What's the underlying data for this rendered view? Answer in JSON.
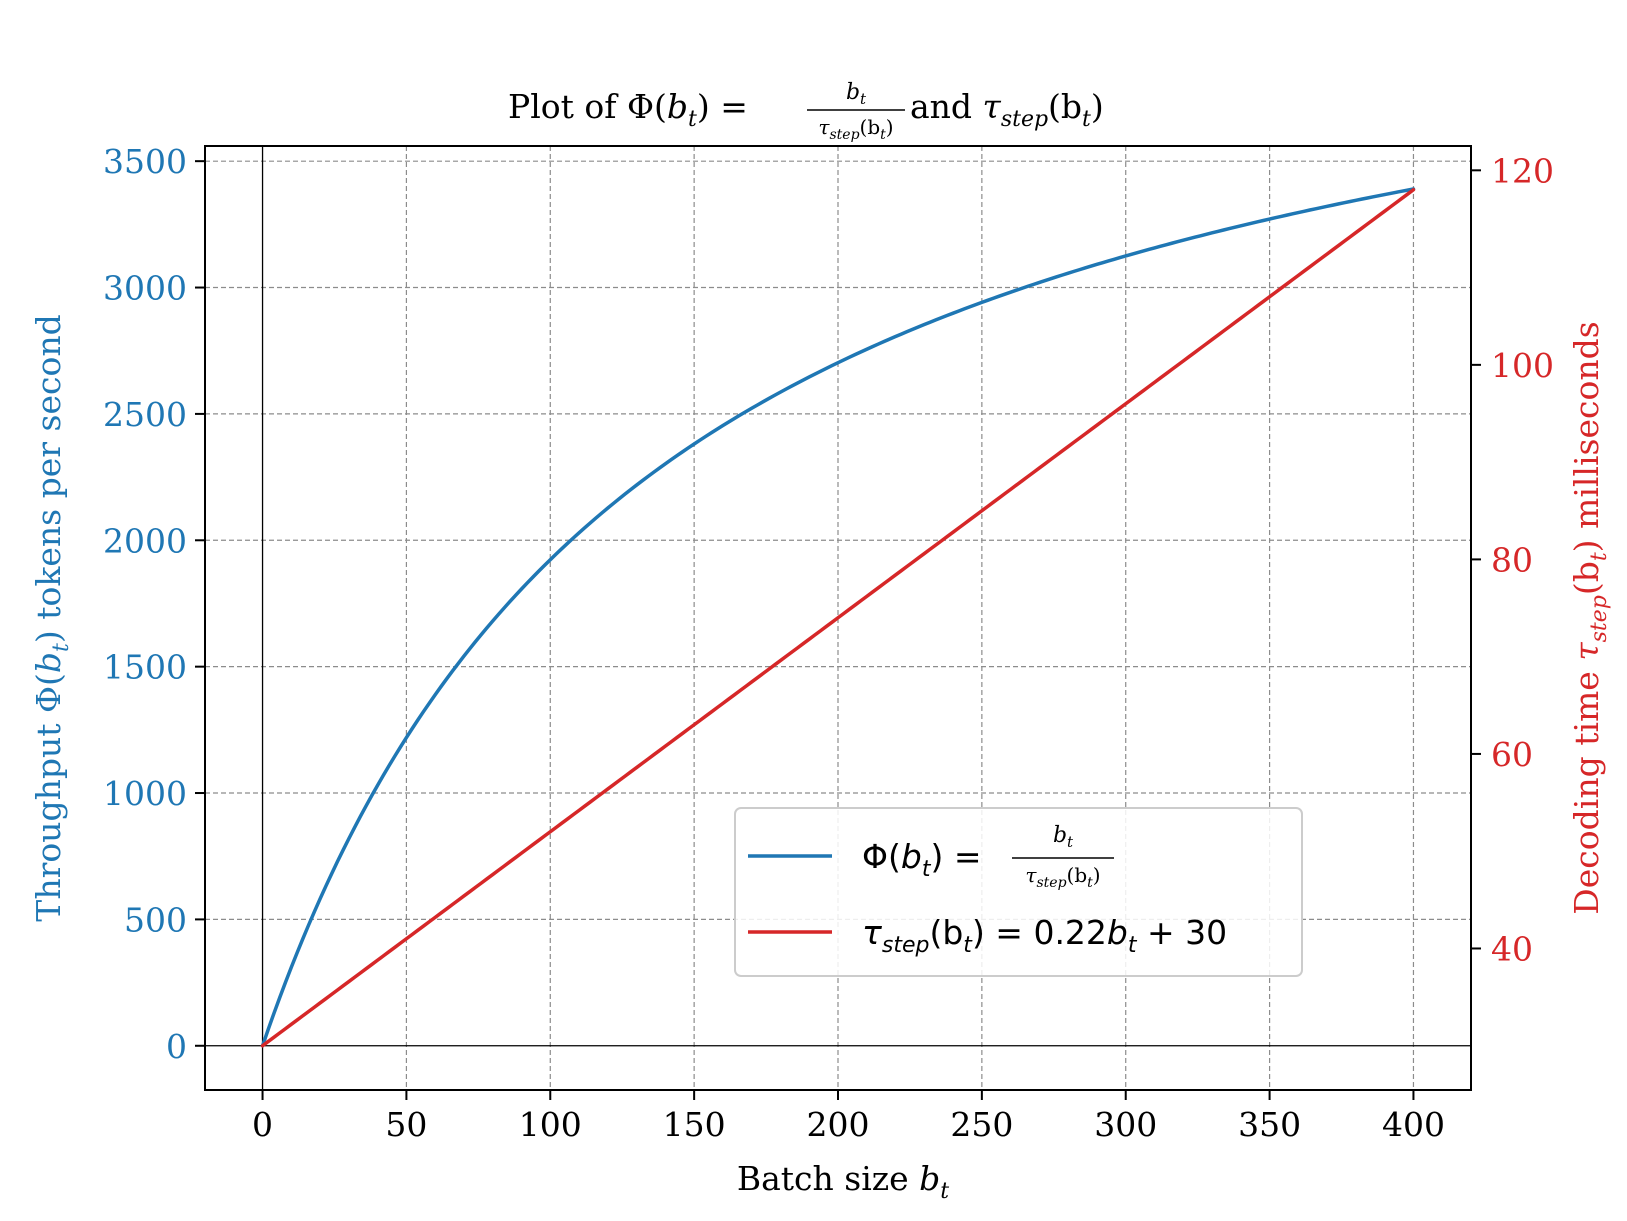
{
  "chart_data": {
    "type": "line",
    "title": {
      "prefix": "Plot of ",
      "phi": "Φ(",
      "b": "b",
      "t": "t",
      "close": ")",
      "eq": " = ",
      "frac_num": "b",
      "frac_num_sub": "t",
      "frac_den_tau": "τ",
      "frac_den_sub": "step",
      "frac_den_arg": "(b",
      "frac_den_arg_sub": "t",
      "frac_den_close": ")",
      "and": " and ",
      "tau": "τ",
      "step": "step",
      "arg": "(b",
      "arg_sub": "t",
      "arg_close": ")"
    },
    "xlabel": {
      "text": "Batch size ",
      "var": "b",
      "sub": "t"
    },
    "ylabel_left": {
      "text": "Throughput ",
      "phi": "Φ(",
      "var": "b",
      "sub": "t",
      "close": ")",
      "rest": " tokens per second"
    },
    "ylabel_right": {
      "text": "Decoding time ",
      "tau": "τ",
      "sub": "step",
      "arg": "(b",
      "argsub": "t",
      "close": ")",
      "rest": " milliseconds"
    },
    "xlim": [
      -20,
      420
    ],
    "ylim_left": [
      -175,
      3560
    ],
    "ylim_right": [
      25.45,
      122.5
    ],
    "xticks": [
      0,
      50,
      100,
      150,
      200,
      250,
      300,
      350,
      400
    ],
    "yticks_left": [
      0,
      500,
      1000,
      1500,
      2000,
      2500,
      3000,
      3500
    ],
    "yticks_right": [
      40,
      60,
      80,
      100,
      120
    ],
    "grid": true,
    "legend_position": "center-right",
    "series": [
      {
        "name_parts": {
          "phi": "Φ(",
          "var": "b",
          "sub": "t",
          "close": ") = ",
          "num": "b",
          "num_sub": "t",
          "den_tau": "τ",
          "den_sub": "step",
          "den_arg": "(b",
          "den_arg_sub": "t",
          "den_close": ")"
        },
        "axis": "left",
        "color": "#1f77b4",
        "formula": "1000*x/(0.22*x+30)",
        "x_range": [
          0,
          400
        ],
        "sample_points": [
          [
            0,
            0
          ],
          [
            50,
            1220
          ],
          [
            100,
            1923
          ],
          [
            150,
            2381
          ],
          [
            200,
            2703
          ],
          [
            250,
            2941
          ],
          [
            300,
            3125
          ],
          [
            350,
            3271
          ],
          [
            400,
            3390
          ]
        ]
      },
      {
        "name_parts": {
          "tau": "τ",
          "sub": "step",
          "arg": "(b",
          "argsub": "t",
          "rest": ") = 0.22",
          "var": "b",
          "var_sub": "t",
          "tail": " + 30"
        },
        "axis": "right",
        "color": "#d62728",
        "formula": "0.22*x+30",
        "x_range": [
          0,
          400
        ],
        "sample_points": [
          [
            0,
            30
          ],
          [
            100,
            52
          ],
          [
            200,
            74
          ],
          [
            300,
            96
          ],
          [
            400,
            118
          ]
        ]
      }
    ],
    "colors": {
      "left_axis": "#1f77b4",
      "right_axis": "#d62728",
      "grid": "#8c8c8c",
      "frame": "#000000"
    }
  }
}
